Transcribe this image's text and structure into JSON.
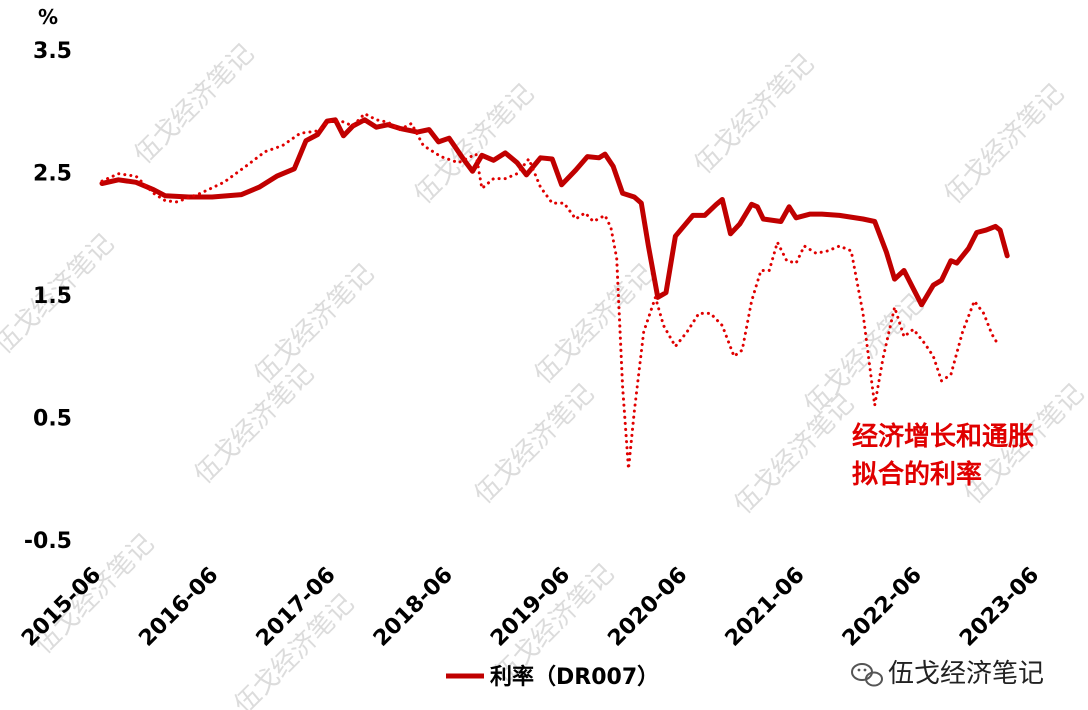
{
  "chart_data": {
    "type": "line",
    "unit_label": "%",
    "ylim": [
      -0.5,
      3.5
    ],
    "y_ticks": [
      "3.5",
      "2.5",
      "1.5",
      "0.5",
      "-0.5"
    ],
    "x_ticks": [
      "2015-06",
      "2016-06",
      "2017-06",
      "2018-06",
      "2019-06",
      "2020-06",
      "2021-06",
      "2022-06",
      "2023-06"
    ],
    "annotation": [
      "经济增长和通胀",
      "拟合的利率"
    ],
    "legend_position": "bottom",
    "colors": {
      "series_solid": "#c00000",
      "series_dotted": "#e00000",
      "annotation": "#e00000"
    },
    "series": [
      {
        "name": "利率（DR007）",
        "style": "solid",
        "points": [
          [
            2015.46,
            2.41
          ],
          [
            2015.6,
            2.44
          ],
          [
            2015.75,
            2.42
          ],
          [
            2015.9,
            2.36
          ],
          [
            2016.0,
            2.31
          ],
          [
            2016.2,
            2.3
          ],
          [
            2016.4,
            2.3
          ],
          [
            2016.65,
            2.32
          ],
          [
            2016.8,
            2.38
          ],
          [
            2016.95,
            2.47
          ],
          [
            2017.1,
            2.53
          ],
          [
            2017.2,
            2.76
          ],
          [
            2017.3,
            2.81
          ],
          [
            2017.38,
            2.92
          ],
          [
            2017.45,
            2.93
          ],
          [
            2017.52,
            2.8
          ],
          [
            2017.6,
            2.88
          ],
          [
            2017.7,
            2.93
          ],
          [
            2017.8,
            2.87
          ],
          [
            2017.9,
            2.89
          ],
          [
            2018.0,
            2.86
          ],
          [
            2018.15,
            2.83
          ],
          [
            2018.25,
            2.85
          ],
          [
            2018.33,
            2.75
          ],
          [
            2018.42,
            2.78
          ],
          [
            2018.55,
            2.6
          ],
          [
            2018.62,
            2.51
          ],
          [
            2018.7,
            2.64
          ],
          [
            2018.8,
            2.6
          ],
          [
            2018.9,
            2.66
          ],
          [
            2019.0,
            2.58
          ],
          [
            2019.08,
            2.48
          ],
          [
            2019.2,
            2.62
          ],
          [
            2019.3,
            2.61
          ],
          [
            2019.38,
            2.4
          ],
          [
            2019.5,
            2.52
          ],
          [
            2019.6,
            2.63
          ],
          [
            2019.7,
            2.62
          ],
          [
            2019.75,
            2.65
          ],
          [
            2019.82,
            2.55
          ],
          [
            2019.9,
            2.33
          ],
          [
            2020.0,
            2.3
          ],
          [
            2020.06,
            2.25
          ],
          [
            2020.12,
            1.9
          ],
          [
            2020.2,
            1.48
          ],
          [
            2020.27,
            1.52
          ],
          [
            2020.35,
            1.98
          ],
          [
            2020.5,
            2.15
          ],
          [
            2020.6,
            2.15
          ],
          [
            2020.7,
            2.24
          ],
          [
            2020.75,
            2.28
          ],
          [
            2020.82,
            2.0
          ],
          [
            2020.9,
            2.08
          ],
          [
            2021.0,
            2.24
          ],
          [
            2021.05,
            2.22
          ],
          [
            2021.1,
            2.12
          ],
          [
            2021.25,
            2.1
          ],
          [
            2021.32,
            2.22
          ],
          [
            2021.38,
            2.13
          ],
          [
            2021.5,
            2.16
          ],
          [
            2021.6,
            2.16
          ],
          [
            2021.75,
            2.15
          ],
          [
            2021.95,
            2.12
          ],
          [
            2022.05,
            2.1
          ],
          [
            2022.15,
            1.85
          ],
          [
            2022.22,
            1.63
          ],
          [
            2022.3,
            1.7
          ],
          [
            2022.38,
            1.55
          ],
          [
            2022.45,
            1.42
          ],
          [
            2022.55,
            1.58
          ],
          [
            2022.62,
            1.62
          ],
          [
            2022.7,
            1.78
          ],
          [
            2022.75,
            1.76
          ],
          [
            2022.85,
            1.88
          ],
          [
            2022.92,
            2.01
          ],
          [
            2023.0,
            2.03
          ],
          [
            2023.08,
            2.06
          ],
          [
            2023.12,
            2.03
          ],
          [
            2023.18,
            1.82
          ]
        ]
      },
      {
        "name": "经济增长和通胀拟合的利率",
        "style": "dotted",
        "points": [
          [
            2015.46,
            2.43
          ],
          [
            2015.6,
            2.49
          ],
          [
            2015.75,
            2.47
          ],
          [
            2015.9,
            2.33
          ],
          [
            2016.0,
            2.27
          ],
          [
            2016.1,
            2.26
          ],
          [
            2016.3,
            2.33
          ],
          [
            2016.5,
            2.42
          ],
          [
            2016.7,
            2.56
          ],
          [
            2016.85,
            2.67
          ],
          [
            2017.0,
            2.72
          ],
          [
            2017.15,
            2.82
          ],
          [
            2017.3,
            2.84
          ],
          [
            2017.4,
            2.92
          ],
          [
            2017.5,
            2.92
          ],
          [
            2017.6,
            2.88
          ],
          [
            2017.7,
            2.98
          ],
          [
            2017.8,
            2.93
          ],
          [
            2017.9,
            2.91
          ],
          [
            2018.0,
            2.85
          ],
          [
            2018.1,
            2.9
          ],
          [
            2018.2,
            2.72
          ],
          [
            2018.35,
            2.63
          ],
          [
            2018.5,
            2.58
          ],
          [
            2018.65,
            2.65
          ],
          [
            2018.7,
            2.37
          ],
          [
            2018.8,
            2.45
          ],
          [
            2018.9,
            2.45
          ],
          [
            2019.0,
            2.49
          ],
          [
            2019.1,
            2.61
          ],
          [
            2019.2,
            2.38
          ],
          [
            2019.3,
            2.25
          ],
          [
            2019.4,
            2.25
          ],
          [
            2019.5,
            2.12
          ],
          [
            2019.58,
            2.17
          ],
          [
            2019.65,
            2.1
          ],
          [
            2019.75,
            2.15
          ],
          [
            2019.8,
            2.05
          ],
          [
            2019.85,
            1.8
          ],
          [
            2019.9,
            0.75
          ],
          [
            2019.95,
            0.08
          ],
          [
            2020.0,
            0.55
          ],
          [
            2020.08,
            1.2
          ],
          [
            2020.18,
            1.48
          ],
          [
            2020.25,
            1.25
          ],
          [
            2020.35,
            1.08
          ],
          [
            2020.45,
            1.2
          ],
          [
            2020.55,
            1.35
          ],
          [
            2020.65,
            1.35
          ],
          [
            2020.75,
            1.25
          ],
          [
            2020.85,
            1.0
          ],
          [
            2020.92,
            1.05
          ],
          [
            2021.0,
            1.45
          ],
          [
            2021.08,
            1.7
          ],
          [
            2021.15,
            1.7
          ],
          [
            2021.22,
            1.93
          ],
          [
            2021.3,
            1.78
          ],
          [
            2021.38,
            1.76
          ],
          [
            2021.45,
            1.9
          ],
          [
            2021.55,
            1.84
          ],
          [
            2021.65,
            1.86
          ],
          [
            2021.75,
            1.9
          ],
          [
            2021.85,
            1.86
          ],
          [
            2021.95,
            1.35
          ],
          [
            2022.05,
            0.6
          ],
          [
            2022.12,
            0.98
          ],
          [
            2022.22,
            1.4
          ],
          [
            2022.3,
            1.16
          ],
          [
            2022.38,
            1.22
          ],
          [
            2022.48,
            1.1
          ],
          [
            2022.55,
            1.0
          ],
          [
            2022.62,
            0.8
          ],
          [
            2022.7,
            0.85
          ],
          [
            2022.8,
            1.2
          ],
          [
            2022.9,
            1.45
          ],
          [
            2022.98,
            1.35
          ],
          [
            2023.05,
            1.18
          ],
          [
            2023.1,
            1.1
          ]
        ]
      }
    ],
    "legend_entries": [
      {
        "label": "利率（DR007）",
        "series_index": 0
      }
    ]
  },
  "watermark": {
    "brand": "伍戈经济笔记",
    "icon": "wechat-icon"
  }
}
